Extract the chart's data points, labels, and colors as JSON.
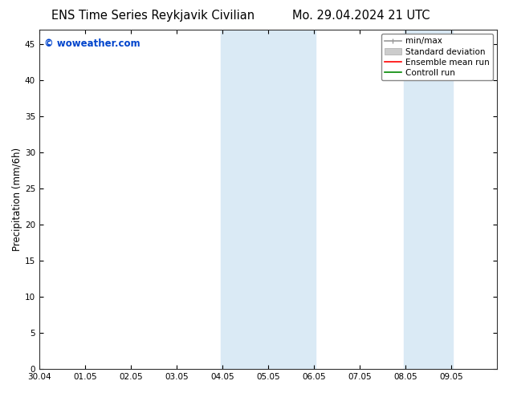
{
  "title_left": "ENS Time Series Reykjavik Civilian",
  "title_right": "Mo. 29.04.2024 21 UTC",
  "ylabel": "Precipitation (mm/6h)",
  "watermark": "© woweather.com",
  "xlim": [
    0,
    10
  ],
  "ylim": [
    0,
    47
  ],
  "yticks": [
    0,
    5,
    10,
    15,
    20,
    25,
    30,
    35,
    40,
    45
  ],
  "xtick_labels": [
    "30.04",
    "01.05",
    "02.05",
    "03.05",
    "04.05",
    "05.05",
    "06.05",
    "07.05",
    "08.05",
    "09.05"
  ],
  "xtick_positions": [
    0,
    1,
    2,
    3,
    4,
    5,
    6,
    7,
    8,
    9
  ],
  "shade_bands": [
    {
      "xmin": 3.97,
      "xmax": 4.5
    },
    {
      "xmin": 4.5,
      "xmax": 6.03
    },
    {
      "xmin": 7.97,
      "xmax": 8.5
    },
    {
      "xmin": 8.5,
      "xmax": 9.03
    }
  ],
  "shade_color": "#daeaf5",
  "background_color": "#ffffff",
  "legend_items": [
    {
      "label": "min/max",
      "color": "#999999",
      "lw": 1.2
    },
    {
      "label": "Standard deviation",
      "color": "#cccccc",
      "lw": 5
    },
    {
      "label": "Ensemble mean run",
      "color": "#ff0000",
      "lw": 1.2
    },
    {
      "label": "Controll run",
      "color": "#008800",
      "lw": 1.2
    }
  ],
  "title_fontsize": 10.5,
  "tick_fontsize": 7.5,
  "ylabel_fontsize": 8.5,
  "watermark_color": "#0044cc",
  "watermark_fontsize": 8.5,
  "legend_fontsize": 7.5
}
